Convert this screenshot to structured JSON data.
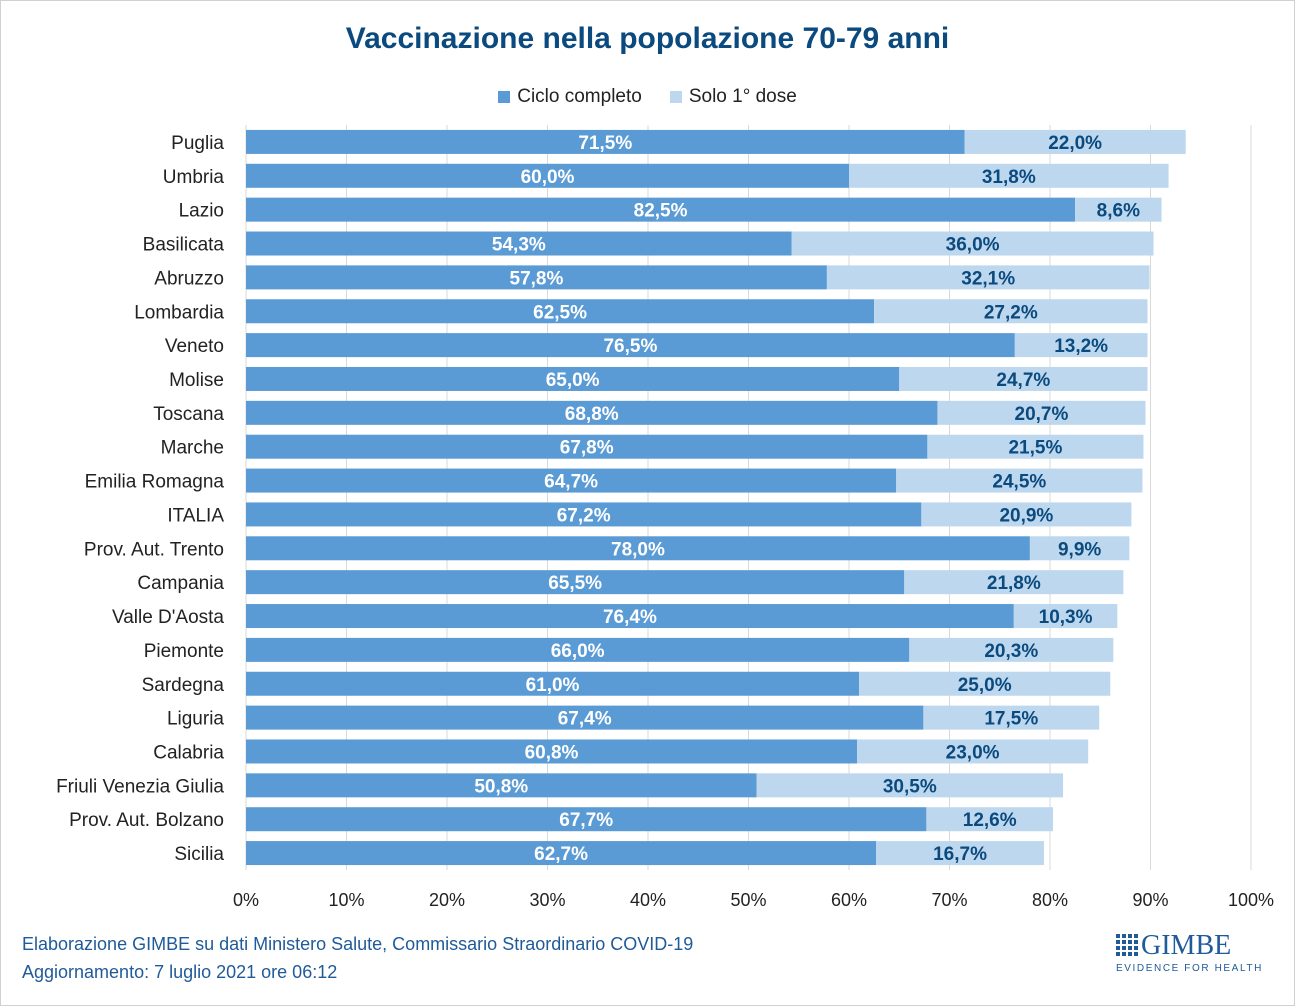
{
  "chart_data": {
    "type": "bar",
    "orientation": "horizontal",
    "stacked": true,
    "title": "Vaccinazione nella popolazione 70-79 anni",
    "categories": [
      "Puglia",
      "Umbria",
      "Lazio",
      "Basilicata",
      "Abruzzo",
      "Lombardia",
      "Veneto",
      "Molise",
      "Toscana",
      "Marche",
      "Emilia Romagna",
      "ITALIA",
      "Prov. Aut. Trento",
      "Campania",
      "Valle D'Aosta",
      "Piemonte",
      "Sardegna",
      "Liguria",
      "Calabria",
      "Friuli Venezia Giulia",
      "Prov. Aut. Bolzano",
      "Sicilia"
    ],
    "series": [
      {
        "name": "Ciclo completo",
        "color": "#5b9bd5",
        "label_color": "#ffffff",
        "values": [
          71.5,
          60.0,
          82.5,
          54.3,
          57.8,
          62.5,
          76.5,
          65.0,
          68.8,
          67.8,
          64.7,
          67.2,
          78.0,
          65.5,
          76.4,
          66.0,
          61.0,
          67.4,
          60.8,
          50.8,
          67.7,
          62.7
        ],
        "labels": [
          "71,5%",
          "60,0%",
          "82,5%",
          "54,3%",
          "57,8%",
          "62,5%",
          "76,5%",
          "65,0%",
          "68,8%",
          "67,8%",
          "64,7%",
          "67,2%",
          "78,0%",
          "65,5%",
          "76,4%",
          "66,0%",
          "61,0%",
          "67,4%",
          "60,8%",
          "50,8%",
          "67,7%",
          "62,7%"
        ]
      },
      {
        "name": "Solo 1° dose",
        "color": "#bdd7ee",
        "label_color": "#0a4a7e",
        "values": [
          22.0,
          31.8,
          8.6,
          36.0,
          32.1,
          27.2,
          13.2,
          24.7,
          20.7,
          21.5,
          24.5,
          20.9,
          9.9,
          21.8,
          10.3,
          20.3,
          25.0,
          17.5,
          23.0,
          30.5,
          12.6,
          16.7
        ],
        "labels": [
          "22,0%",
          "31,8%",
          "8,6%",
          "36,0%",
          "32,1%",
          "27,2%",
          "13,2%",
          "24,7%",
          "20,7%",
          "21,5%",
          "24,5%",
          "20,9%",
          "9,9%",
          "21,8%",
          "10,3%",
          "20,3%",
          "25,0%",
          "17,5%",
          "23,0%",
          "30,5%",
          "12,6%",
          "16,7%"
        ]
      }
    ],
    "xlim": [
      0,
      100
    ],
    "xticks": [
      0,
      10,
      20,
      30,
      40,
      50,
      60,
      70,
      80,
      90,
      100
    ],
    "xtick_labels": [
      "0%",
      "10%",
      "20%",
      "30%",
      "40%",
      "50%",
      "60%",
      "70%",
      "80%",
      "90%",
      "100%"
    ],
    "grid": "vertical",
    "legend": "top-center",
    "xlabel": "",
    "ylabel": ""
  },
  "footer": {
    "source": "Elaborazione GIMBE su dati Ministero Salute, Commissario Straordinario COVID-19",
    "updated": "Aggiornamento: 7 luglio 2021 ore 06:12"
  },
  "logo": {
    "name": "GIMBE",
    "tagline": "EVIDENCE FOR HEALTH",
    "color": "#1f5a99"
  }
}
